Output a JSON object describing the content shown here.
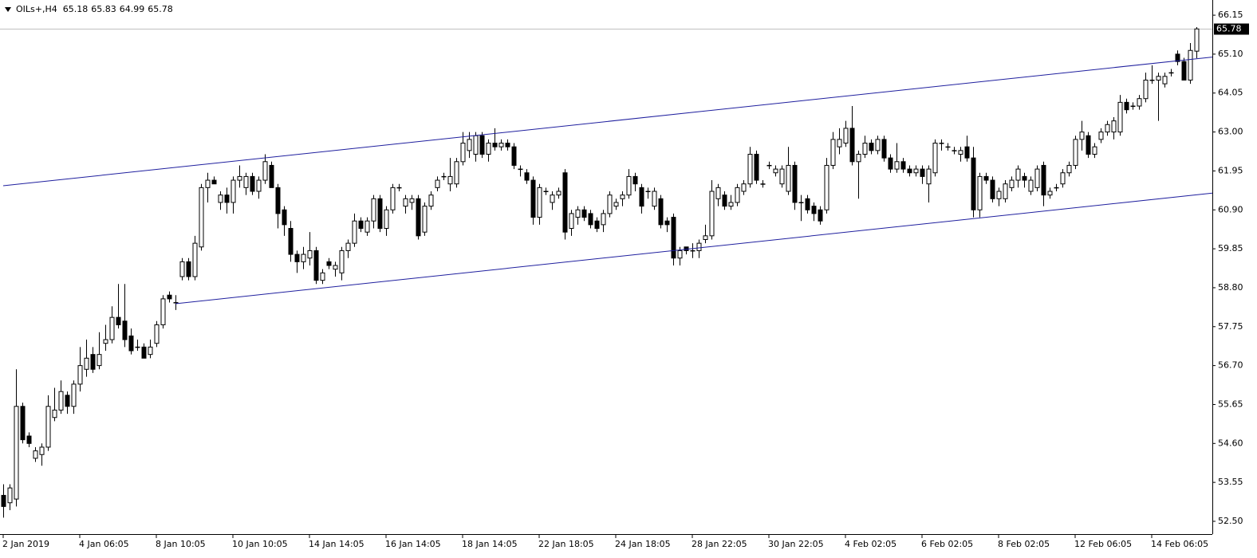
{
  "chart_data": {
    "type": "candlestick",
    "symbol": "OILs+,H4",
    "categories": [
      "2 Jan 2019",
      null,
      null,
      null,
      null,
      null,
      null,
      null,
      null,
      null,
      null,
      null,
      "4 Jan 06:05",
      null,
      null,
      null,
      null,
      null,
      null,
      null,
      null,
      null,
      null,
      null,
      "8 Jan 10:05",
      null,
      null,
      null,
      null,
      null,
      null,
      null,
      null,
      null,
      null,
      null,
      "10 Jan 10:05",
      null,
      null,
      null,
      null,
      null,
      null,
      null,
      null,
      null,
      null,
      null,
      "14 Jan 14:05",
      null,
      null,
      null,
      null,
      null,
      null,
      null,
      null,
      null,
      null,
      null,
      "16 Jan 14:05",
      null,
      null,
      null,
      null,
      null,
      null,
      null,
      null,
      null,
      null,
      null,
      "18 Jan 14:05",
      null,
      null,
      null,
      null,
      null,
      null,
      null,
      null,
      null,
      null,
      null,
      "22 Jan 18:05",
      null,
      null,
      null,
      null,
      null,
      null,
      null,
      null,
      null,
      null,
      null,
      "24 Jan 18:05",
      null,
      null,
      null,
      null,
      null,
      null,
      null,
      null,
      null,
      null,
      null,
      "28 Jan 22:05",
      null,
      null,
      null,
      null,
      null,
      null,
      null,
      null,
      null,
      null,
      null,
      "30 Jan 22:05",
      null,
      null,
      null,
      null,
      null,
      null,
      null,
      null,
      null,
      null,
      null,
      "4 Feb 02:05",
      null,
      null,
      null,
      null,
      null,
      null,
      null,
      null,
      null,
      null,
      null,
      "6 Feb 02:05",
      null,
      null,
      null,
      null,
      null,
      null,
      null,
      null,
      null,
      null,
      null,
      "8 Feb 02:05",
      null,
      null,
      null,
      null,
      null,
      null,
      null,
      null,
      null,
      null,
      null,
      "12 Feb 06:05",
      null,
      null,
      null,
      null,
      null,
      null,
      null,
      null,
      null,
      null,
      null,
      "14 Feb 06:05",
      null,
      null,
      null,
      null,
      null,
      null,
      null
    ],
    "ohlc": [
      [
        53.2,
        53.5,
        52.6,
        52.9
      ],
      [
        53.0,
        53.5,
        52.8,
        53.4
      ],
      [
        53.1,
        56.6,
        52.9,
        55.6
      ],
      [
        55.6,
        55.7,
        54.6,
        54.7
      ],
      [
        54.8,
        54.9,
        54.5,
        54.6
      ],
      [
        54.2,
        54.5,
        54.1,
        54.4
      ],
      [
        54.3,
        54.6,
        54.0,
        54.5
      ],
      [
        54.5,
        55.9,
        54.4,
        55.6
      ],
      [
        55.3,
        56.1,
        55.2,
        55.5
      ],
      [
        55.5,
        56.3,
        55.4,
        56.0
      ],
      [
        55.9,
        56.0,
        55.4,
        55.6
      ],
      [
        55.6,
        56.3,
        55.4,
        56.2
      ],
      [
        56.2,
        57.2,
        56.0,
        56.7
      ],
      [
        56.6,
        57.4,
        56.4,
        56.9
      ],
      [
        57.0,
        57.2,
        56.5,
        56.6
      ],
      [
        56.7,
        57.6,
        56.6,
        57.0
      ],
      [
        57.3,
        57.8,
        57.1,
        57.4
      ],
      [
        57.4,
        58.3,
        57.3,
        58.0
      ],
      [
        58.0,
        58.9,
        57.7,
        57.8
      ],
      [
        57.9,
        58.9,
        57.2,
        57.4
      ],
      [
        57.5,
        57.7,
        57.0,
        57.1
      ],
      [
        57.2,
        57.4,
        57.1,
        57.2
      ],
      [
        57.2,
        57.3,
        56.9,
        56.9
      ],
      [
        57.0,
        57.4,
        56.9,
        57.2
      ],
      [
        57.3,
        57.9,
        57.2,
        57.8
      ],
      [
        57.8,
        58.6,
        57.7,
        58.5
      ],
      [
        58.6,
        58.7,
        58.4,
        58.5
      ],
      [
        58.4,
        58.6,
        58.2,
        58.4
      ],
      [
        59.1,
        59.6,
        59.0,
        59.5
      ],
      [
        59.5,
        59.6,
        59.0,
        59.1
      ],
      [
        59.1,
        60.2,
        59.0,
        60.0
      ],
      [
        59.9,
        61.6,
        59.8,
        61.5
      ],
      [
        61.5,
        61.9,
        61.1,
        61.7
      ],
      [
        61.7,
        61.8,
        61.6,
        61.6
      ],
      [
        61.1,
        61.4,
        60.9,
        61.3
      ],
      [
        61.3,
        61.5,
        60.8,
        61.1
      ],
      [
        61.1,
        61.8,
        60.8,
        61.7
      ],
      [
        61.7,
        62.1,
        61.5,
        61.8
      ],
      [
        61.5,
        61.9,
        61.3,
        61.8
      ],
      [
        61.8,
        61.9,
        61.3,
        61.4
      ],
      [
        61.4,
        61.8,
        61.2,
        61.7
      ],
      [
        61.7,
        62.4,
        61.6,
        62.2
      ],
      [
        62.1,
        62.2,
        61.5,
        61.5
      ],
      [
        61.5,
        61.6,
        60.4,
        60.8
      ],
      [
        60.9,
        61.0,
        60.2,
        60.5
      ],
      [
        60.4,
        60.6,
        59.5,
        59.7
      ],
      [
        59.7,
        59.8,
        59.2,
        59.5
      ],
      [
        59.5,
        59.9,
        59.3,
        59.7
      ],
      [
        59.6,
        60.3,
        59.4,
        59.8
      ],
      [
        59.8,
        59.9,
        58.9,
        59.0
      ],
      [
        59.0,
        59.3,
        58.9,
        59.2
      ],
      [
        59.5,
        59.6,
        59.3,
        59.4
      ],
      [
        59.3,
        59.5,
        59.1,
        59.4
      ],
      [
        59.2,
        59.9,
        59.0,
        59.8
      ],
      [
        59.8,
        60.1,
        59.6,
        60.0
      ],
      [
        60.0,
        60.8,
        59.9,
        60.6
      ],
      [
        60.6,
        60.7,
        60.3,
        60.4
      ],
      [
        60.3,
        60.7,
        60.2,
        60.6
      ],
      [
        60.6,
        61.3,
        60.4,
        61.2
      ],
      [
        61.2,
        61.3,
        60.3,
        60.4
      ],
      [
        60.4,
        61.0,
        60.2,
        60.9
      ],
      [
        60.9,
        61.6,
        60.8,
        61.5
      ],
      [
        61.5,
        61.6,
        61.4,
        61.5
      ],
      [
        61.0,
        61.3,
        60.8,
        61.2
      ],
      [
        61.1,
        61.3,
        60.9,
        61.2
      ],
      [
        61.2,
        61.3,
        60.1,
        60.2
      ],
      [
        60.3,
        61.1,
        60.2,
        61.0
      ],
      [
        61.0,
        61.4,
        60.9,
        61.3
      ],
      [
        61.5,
        61.8,
        61.4,
        61.7
      ],
      [
        61.8,
        61.9,
        61.7,
        61.8
      ],
      [
        61.6,
        62.3,
        61.4,
        61.8
      ],
      [
        61.6,
        62.3,
        61.5,
        62.2
      ],
      [
        62.2,
        63.0,
        62.1,
        62.7
      ],
      [
        62.5,
        63.0,
        62.3,
        62.8
      ],
      [
        62.4,
        63.0,
        62.2,
        62.9
      ],
      [
        62.9,
        63.0,
        62.3,
        62.4
      ],
      [
        62.4,
        62.8,
        62.2,
        62.7
      ],
      [
        62.7,
        63.1,
        62.5,
        62.6
      ],
      [
        62.6,
        62.8,
        62.5,
        62.7
      ],
      [
        62.7,
        62.8,
        62.5,
        62.6
      ],
      [
        62.6,
        62.7,
        62.0,
        62.1
      ],
      [
        62.0,
        62.1,
        61.8,
        62.0
      ],
      [
        61.9,
        62.0,
        61.6,
        61.7
      ],
      [
        61.7,
        61.8,
        60.5,
        60.7
      ],
      [
        60.7,
        61.6,
        60.5,
        61.5
      ],
      [
        61.4,
        61.5,
        61.3,
        61.4
      ],
      [
        61.1,
        61.4,
        60.9,
        61.3
      ],
      [
        61.3,
        61.5,
        61.2,
        61.4
      ],
      [
        61.9,
        62.0,
        60.1,
        60.3
      ],
      [
        60.4,
        60.9,
        60.2,
        60.8
      ],
      [
        60.7,
        61.0,
        60.5,
        60.9
      ],
      [
        60.9,
        61.0,
        60.6,
        60.7
      ],
      [
        60.8,
        60.9,
        60.4,
        60.5
      ],
      [
        60.6,
        60.7,
        60.3,
        60.4
      ],
      [
        60.5,
        60.9,
        60.3,
        60.8
      ],
      [
        60.8,
        61.4,
        60.7,
        61.3
      ],
      [
        61.0,
        61.2,
        60.9,
        61.1
      ],
      [
        61.2,
        61.4,
        61.0,
        61.3
      ],
      [
        61.3,
        62.0,
        61.2,
        61.8
      ],
      [
        61.8,
        61.9,
        61.4,
        61.6
      ],
      [
        61.5,
        61.6,
        60.8,
        61.0
      ],
      [
        61.4,
        61.5,
        61.2,
        61.4
      ],
      [
        61.0,
        61.5,
        60.9,
        61.4
      ],
      [
        61.2,
        61.3,
        60.4,
        60.5
      ],
      [
        60.6,
        60.7,
        60.3,
        60.5
      ],
      [
        60.7,
        60.8,
        59.4,
        59.6
      ],
      [
        59.6,
        59.9,
        59.4,
        59.8
      ],
      [
        59.9,
        59.9,
        59.7,
        59.8
      ],
      [
        59.8,
        60.0,
        59.6,
        59.8
      ],
      [
        59.8,
        60.1,
        59.6,
        60.0
      ],
      [
        60.1,
        60.5,
        60.0,
        60.2
      ],
      [
        60.2,
        61.7,
        60.1,
        61.4
      ],
      [
        61.2,
        61.6,
        61.0,
        61.5
      ],
      [
        61.3,
        61.4,
        60.9,
        61.0
      ],
      [
        61.0,
        61.3,
        60.9,
        61.1
      ],
      [
        61.1,
        61.6,
        61.0,
        61.5
      ],
      [
        61.4,
        61.7,
        61.3,
        61.6
      ],
      [
        61.6,
        62.6,
        61.5,
        62.4
      ],
      [
        62.4,
        62.5,
        61.6,
        61.7
      ],
      [
        61.6,
        61.7,
        61.5,
        61.6
      ],
      [
        62.1,
        62.2,
        62.0,
        62.1
      ],
      [
        61.9,
        62.1,
        61.8,
        62.0
      ],
      [
        61.6,
        62.1,
        61.5,
        62.0
      ],
      [
        61.4,
        62.6,
        61.3,
        62.1
      ],
      [
        62.1,
        62.2,
        60.9,
        61.1
      ],
      [
        61.1,
        61.3,
        60.6,
        61.1
      ],
      [
        61.2,
        61.3,
        60.8,
        60.9
      ],
      [
        61.0,
        61.1,
        60.6,
        60.8
      ],
      [
        60.9,
        61.0,
        60.5,
        60.6
      ],
      [
        60.9,
        62.3,
        60.8,
        62.1
      ],
      [
        62.1,
        63.0,
        62.0,
        62.8
      ],
      [
        62.6,
        63.1,
        62.4,
        62.8
      ],
      [
        62.7,
        63.3,
        62.6,
        63.1
      ],
      [
        63.1,
        63.7,
        62.1,
        62.2
      ],
      [
        62.2,
        62.5,
        61.2,
        62.4
      ],
      [
        62.4,
        62.9,
        62.3,
        62.7
      ],
      [
        62.7,
        62.8,
        62.4,
        62.5
      ],
      [
        62.5,
        62.9,
        62.4,
        62.8
      ],
      [
        62.8,
        62.9,
        62.2,
        62.3
      ],
      [
        62.3,
        62.4,
        61.9,
        62.0
      ],
      [
        62.0,
        62.7,
        61.9,
        62.2
      ],
      [
        62.2,
        62.3,
        61.9,
        62.0
      ],
      [
        62.0,
        62.1,
        61.8,
        61.9
      ],
      [
        61.9,
        62.1,
        61.8,
        62.0
      ],
      [
        62.0,
        62.1,
        61.6,
        61.8
      ],
      [
        61.6,
        62.1,
        61.1,
        62.0
      ],
      [
        61.9,
        62.8,
        61.8,
        62.7
      ],
      [
        62.7,
        62.8,
        62.5,
        62.7
      ],
      [
        62.6,
        62.7,
        62.5,
        62.6
      ],
      [
        62.5,
        62.6,
        62.4,
        62.5
      ],
      [
        62.4,
        62.6,
        62.2,
        62.5
      ],
      [
        62.6,
        62.9,
        62.2,
        62.3
      ],
      [
        62.3,
        62.6,
        60.7,
        60.9
      ],
      [
        60.9,
        61.9,
        60.7,
        61.8
      ],
      [
        61.8,
        61.9,
        61.6,
        61.7
      ],
      [
        61.7,
        61.8,
        61.1,
        61.2
      ],
      [
        61.2,
        61.5,
        61.0,
        61.4
      ],
      [
        61.2,
        61.7,
        61.1,
        61.6
      ],
      [
        61.5,
        61.8,
        61.4,
        61.7
      ],
      [
        61.7,
        62.1,
        61.5,
        62.0
      ],
      [
        61.8,
        61.9,
        61.5,
        61.7
      ],
      [
        61.4,
        61.8,
        61.3,
        61.7
      ],
      [
        61.5,
        62.1,
        61.4,
        62.0
      ],
      [
        62.1,
        62.2,
        61.0,
        61.3
      ],
      [
        61.3,
        61.5,
        61.2,
        61.4
      ],
      [
        61.5,
        61.6,
        61.4,
        61.5
      ],
      [
        61.6,
        62.0,
        61.5,
        61.9
      ],
      [
        61.9,
        62.2,
        61.8,
        62.1
      ],
      [
        62.1,
        62.9,
        62.0,
        62.8
      ],
      [
        62.8,
        63.3,
        62.5,
        63.0
      ],
      [
        62.9,
        63.0,
        62.3,
        62.4
      ],
      [
        62.4,
        62.7,
        62.3,
        62.6
      ],
      [
        62.8,
        63.1,
        62.7,
        63.0
      ],
      [
        63.0,
        63.3,
        62.9,
        63.2
      ],
      [
        63.0,
        63.4,
        62.8,
        63.3
      ],
      [
        63.0,
        64.0,
        62.9,
        63.8
      ],
      [
        63.8,
        63.9,
        63.5,
        63.6
      ],
      [
        63.7,
        63.8,
        63.6,
        63.7
      ],
      [
        63.7,
        64.0,
        63.6,
        63.9
      ],
      [
        63.9,
        64.6,
        63.8,
        64.4
      ],
      [
        64.4,
        64.8,
        64.3,
        64.4
      ],
      [
        64.4,
        64.6,
        63.3,
        64.5
      ],
      [
        64.3,
        64.6,
        64.2,
        64.5
      ],
      [
        64.6,
        64.7,
        64.5,
        64.6
      ],
      [
        65.1,
        65.2,
        64.8,
        64.9
      ],
      [
        64.9,
        65.0,
        64.4,
        64.4
      ],
      [
        64.4,
        65.4,
        64.3,
        65.2
      ],
      [
        65.18,
        65.83,
        64.99,
        65.78
      ]
    ],
    "ylim": [
      52.22,
      66.56
    ],
    "yticks": [
      {
        "value": 52.5,
        "label": "52.50"
      },
      {
        "value": 53.55,
        "label": "53.55"
      },
      {
        "value": 54.6,
        "label": "54.60"
      },
      {
        "value": 55.65,
        "label": "55.65"
      },
      {
        "value": 56.7,
        "label": "56.70"
      },
      {
        "value": 57.75,
        "label": "57.75"
      },
      {
        "value": 58.8,
        "label": "58.80"
      },
      {
        "value": 59.85,
        "label": "59.85"
      },
      {
        "value": 60.9,
        "label": "60.90"
      },
      {
        "value": 61.95,
        "label": "61.95"
      },
      {
        "value": 63.0,
        "label": "63.00"
      },
      {
        "value": 64.05,
        "label": "64.05"
      },
      {
        "value": 65.1,
        "label": "65.10"
      },
      {
        "value": 66.15,
        "label": "66.15"
      }
    ],
    "bull_color": "#ffffff",
    "bear_color": "#000000",
    "last_price_line_color": "#c0c0c0",
    "trendlines": [
      {
        "color": "#1f1f9e",
        "x": [
          0,
          190
        ],
        "y": [
          61.55,
          65.03
        ]
      },
      {
        "color": "#1f1f9e",
        "x": [
          27,
          190
        ],
        "y": [
          58.37,
          61.36
        ]
      }
    ]
  }
}
